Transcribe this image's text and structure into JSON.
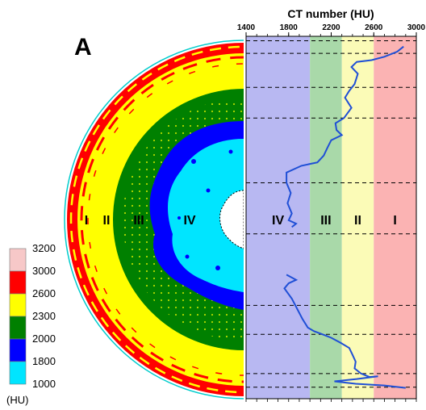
{
  "panel_label": "A",
  "x_axis_title": "CT number (HU)",
  "legend": {
    "unit": "(HU)",
    "entries": [
      {
        "label": "3200",
        "color": "#f7c8c8"
      },
      {
        "label": "3000",
        "color": "#ff0000"
      },
      {
        "label": "2600",
        "color": "#ffff00"
      },
      {
        "label": "2300",
        "color": "#008000"
      },
      {
        "label": "2000",
        "color": "#0000ff"
      },
      {
        "label": "1800",
        "color": "#00e5ff"
      },
      {
        "label": "1000",
        "color": null
      }
    ]
  },
  "left_zone_labels": [
    "I",
    "II",
    "III",
    "IV"
  ],
  "chart_data": {
    "type": "line",
    "xlabel": "CT number (HU)",
    "xlim": [
      1400,
      3000
    ],
    "x_ticks": [
      "1400",
      "1800",
      "2200",
      "2600",
      "3000"
    ],
    "bands": [
      {
        "label": "IV",
        "from": 1400,
        "to": 2000,
        "color": "#b8b8f2"
      },
      {
        "label": "III",
        "from": 2000,
        "to": 2300,
        "color": "#a9d9a9"
      },
      {
        "label": "II",
        "from": 2300,
        "to": 2600,
        "color": "#fbfbb7"
      },
      {
        "label": "I",
        "from": 2600,
        "to": 3000,
        "color": "#fbb3b3"
      }
    ],
    "series": [
      {
        "color": "#1f4fd6",
        "points": [
          [
            2880,
            0.03
          ],
          [
            2820,
            0.045
          ],
          [
            2700,
            0.06
          ],
          [
            2580,
            0.07
          ],
          [
            2440,
            0.075
          ],
          [
            2390,
            0.09
          ],
          [
            2450,
            0.11
          ],
          [
            2420,
            0.14
          ],
          [
            2370,
            0.16
          ],
          [
            2330,
            0.18
          ],
          [
            2390,
            0.21
          ],
          [
            2320,
            0.24
          ],
          [
            2240,
            0.255
          ],
          [
            2250,
            0.275
          ],
          [
            2300,
            0.29
          ],
          [
            2200,
            0.305
          ],
          [
            2160,
            0.33
          ],
          [
            2130,
            0.35
          ],
          [
            2070,
            0.37
          ],
          [
            1920,
            0.38
          ],
          [
            1850,
            0.39
          ],
          [
            1780,
            0.4
          ],
          [
            1780,
            0.43
          ],
          [
            1820,
            0.46
          ],
          [
            1790,
            0.49
          ],
          [
            1830,
            0.52
          ],
          [
            1800,
            0.54
          ],
          [
            1870,
            0.55
          ],
          [
            1830,
            0.56
          ],
          [
            1780,
            0.7
          ],
          [
            1870,
            0.715
          ],
          [
            1800,
            0.725
          ],
          [
            1760,
            0.74
          ],
          [
            1830,
            0.77
          ],
          [
            1880,
            0.8
          ],
          [
            1930,
            0.83
          ],
          [
            1980,
            0.855
          ],
          [
            2040,
            0.866
          ],
          [
            2120,
            0.875
          ],
          [
            2200,
            0.885
          ],
          [
            2290,
            0.9
          ],
          [
            2370,
            0.915
          ],
          [
            2400,
            0.935
          ],
          [
            2430,
            0.955
          ],
          [
            2420,
            0.975
          ],
          [
            2480,
            0.99
          ],
          [
            2560,
            1.0
          ],
          [
            2640,
            0.998
          ],
          [
            2440,
            1.006
          ],
          [
            2230,
            1.013
          ],
          [
            2430,
            1.02
          ],
          [
            2700,
            1.025
          ],
          [
            2900,
            1.032
          ]
        ]
      }
    ],
    "gap_between": [
      0.56,
      0.7
    ],
    "dashed_line_positions": [
      0.013,
      0.05,
      0.15,
      0.24,
      0.43,
      0.58,
      0.79,
      0.875,
      0.99,
      1.03
    ],
    "band_labels_row": [
      "IV",
      "III",
      "II",
      "I"
    ]
  }
}
